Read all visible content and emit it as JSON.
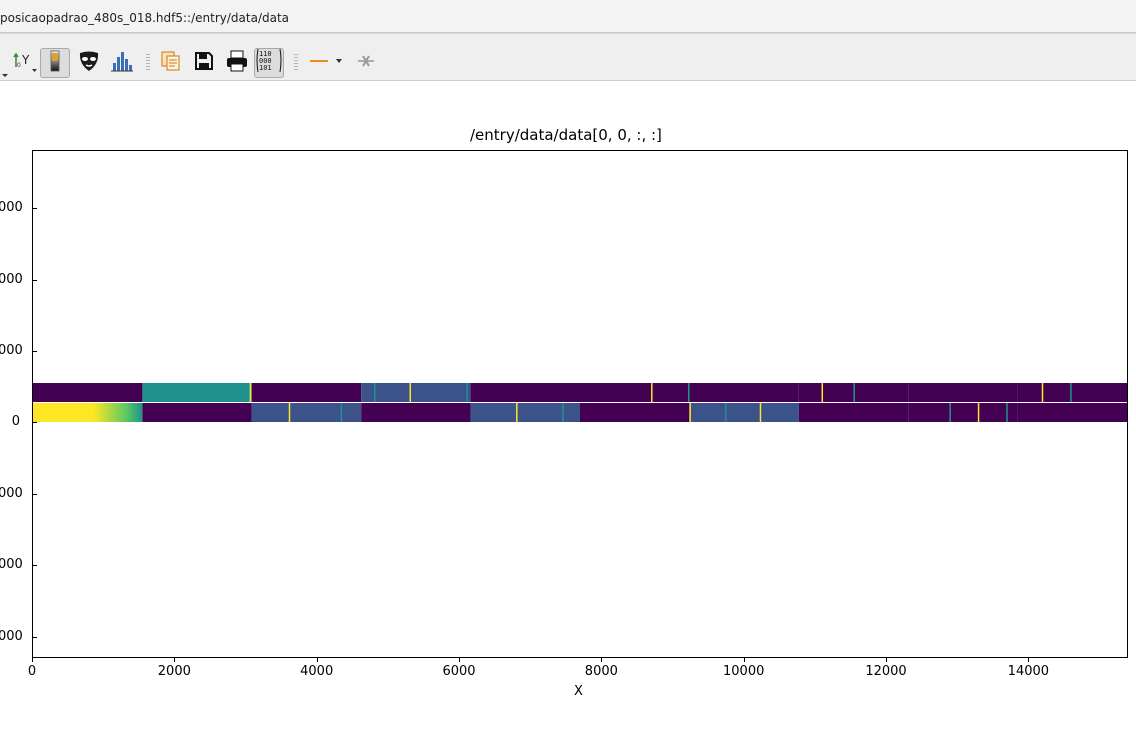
{
  "window": {
    "title": "posicaopadrao_480s_018.hdf5::/entry/data/data"
  },
  "toolbar": {
    "items": [
      {
        "name": "y-axis-options-icon",
        "glyph": "Y",
        "interactable": true
      },
      {
        "name": "colormap-icon",
        "interactable": true,
        "active": true
      },
      {
        "name": "mask-tool-icon",
        "interactable": true
      },
      {
        "name": "histogram-icon",
        "interactable": true
      },
      {
        "name": "copy-icon",
        "interactable": true
      },
      {
        "name": "save-icon",
        "interactable": true
      },
      {
        "name": "print-icon",
        "interactable": true
      },
      {
        "name": "raw-data-icon",
        "glyph": "110\n000\n101",
        "interactable": true,
        "active": true
      },
      {
        "name": "line-profile-icon",
        "interactable": true
      },
      {
        "name": "clear-profile-icon",
        "interactable": false
      }
    ]
  },
  "plot": {
    "title": "/entry/data/data[0, 0, :, :]",
    "xlabel": "X",
    "x_ticks": [
      "0",
      "2000",
      "4000",
      "6000",
      "8000",
      "10000",
      "12000",
      "14000"
    ],
    "y_ticks": [
      "000",
      "000",
      "000",
      "0",
      "000",
      "000",
      "000"
    ],
    "colormap": [
      "#440154",
      "#3b528b",
      "#21918c",
      "#5ec962",
      "#fde725"
    ]
  },
  "chart_data": {
    "type": "heatmap",
    "title": "/entry/data/data[0, 0, :, :]",
    "xlabel": "X",
    "ylabel": "",
    "xlim": [
      0,
      15400
    ],
    "x_ticks": [
      0,
      2000,
      4000,
      6000,
      8000,
      10000,
      12000,
      14000
    ],
    "row_bands": [
      {
        "name": "upper",
        "segments": [
          {
            "x0": 0,
            "x1": 1540,
            "level": 0.0
          },
          {
            "x0": 1540,
            "x1": 3080,
            "level": 0.45
          },
          {
            "x0": 3080,
            "x1": 4620,
            "level": 0.0
          },
          {
            "x0": 4620,
            "x1": 6160,
            "level": 0.2
          },
          {
            "x0": 6160,
            "x1": 7700,
            "level": 0.0
          },
          {
            "x0": 7700,
            "x1": 9240,
            "level": 0.12
          },
          {
            "x0": 9240,
            "x1": 10780,
            "level": 0.0
          },
          {
            "x0": 10780,
            "x1": 12320,
            "level": 0.1
          },
          {
            "x0": 12320,
            "x1": 13860,
            "level": 0.0
          },
          {
            "x0": 13860,
            "x1": 15400,
            "level": 0.1
          }
        ]
      },
      {
        "name": "lower",
        "segments": [
          {
            "x0": 0,
            "x1": 1540,
            "level": 0.95
          },
          {
            "x0": 1540,
            "x1": 3080,
            "level": 0.0
          },
          {
            "x0": 3080,
            "x1": 4620,
            "level": 0.22
          },
          {
            "x0": 4620,
            "x1": 6160,
            "level": 0.0
          },
          {
            "x0": 6160,
            "x1": 7700,
            "level": 0.18
          },
          {
            "x0": 7700,
            "x1": 9240,
            "level": 0.0
          },
          {
            "x0": 9240,
            "x1": 10780,
            "level": 0.15
          },
          {
            "x0": 10780,
            "x1": 12320,
            "level": 0.0
          },
          {
            "x0": 12320,
            "x1": 13860,
            "level": 0.12
          },
          {
            "x0": 13860,
            "x1": 15400,
            "level": 0.0
          }
        ]
      }
    ],
    "bright_lines_upper": [
      3050,
      4800,
      5300,
      6100,
      8700,
      9220,
      11100,
      11550,
      14200,
      14600
    ],
    "bright_lines_lower": [
      3600,
      4330,
      6800,
      7450,
      9240,
      9740,
      10230,
      12900,
      13300,
      13700
    ]
  }
}
